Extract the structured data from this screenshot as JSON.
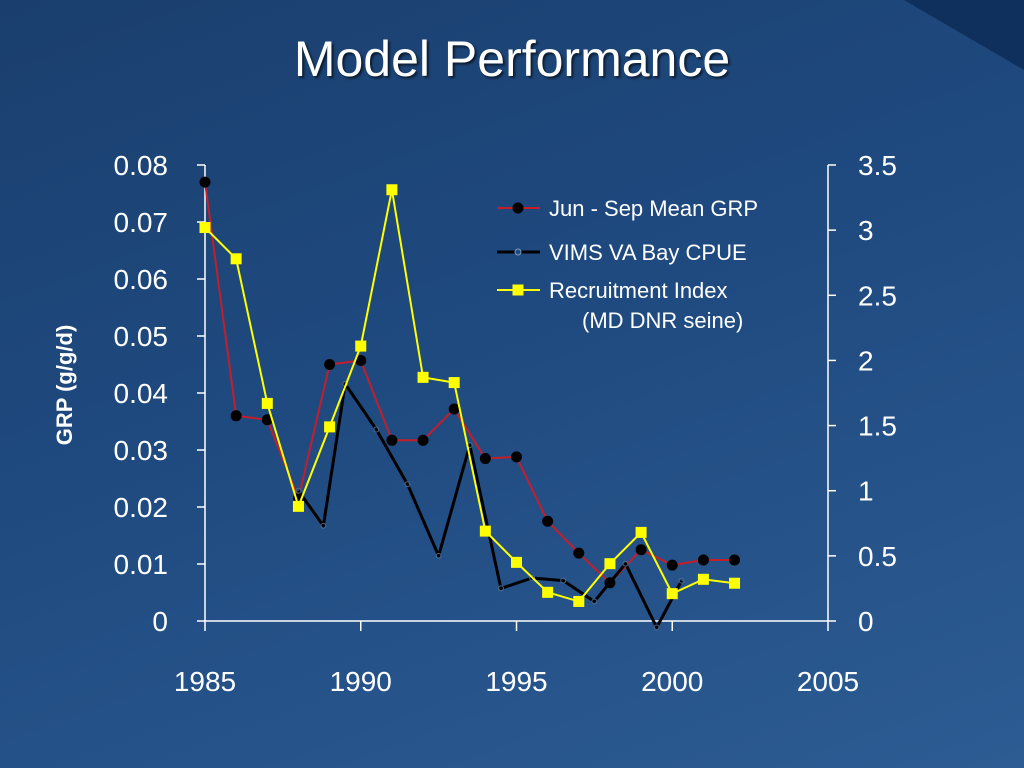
{
  "slide": {
    "title": "Model Performance"
  },
  "chart_data": {
    "type": "line",
    "title": "Model Performance",
    "xlabel": "",
    "ylabel": "GRP (g/g/d)",
    "y2label": "",
    "xlim": [
      1985,
      2005
    ],
    "ylim": [
      0,
      0.08
    ],
    "y2lim": [
      0,
      3.5
    ],
    "x_ticks": [
      "1985",
      "1990",
      "1995",
      "2000",
      "2005"
    ],
    "y_ticks": [
      "0",
      "0.01",
      "0.02",
      "0.03",
      "0.04",
      "0.05",
      "0.06",
      "0.07",
      "0.08"
    ],
    "y2_ticks": [
      "0",
      "0.5",
      "1",
      "1.5",
      "2",
      "2.5",
      "3",
      "3.5"
    ],
    "grid": false,
    "legend_position": "top-right",
    "series": [
      {
        "name": "Jun - Sep Mean GRP",
        "axis": "left",
        "color": "#c41e2a",
        "marker": "circle-filled",
        "marker_color": "#000000",
        "x": [
          1985,
          1986,
          1987,
          1988,
          1989,
          1990,
          1991,
          1992,
          1993,
          1994,
          1995,
          1996,
          1997,
          1998,
          1999,
          2000,
          2001,
          2002
        ],
        "values": [
          0.077,
          0.036,
          0.0353,
          0.0215,
          0.045,
          0.0457,
          0.0317,
          0.0317,
          0.0372,
          0.0285,
          0.0288,
          0.0175,
          0.0119,
          0.0067,
          0.0125,
          0.0098,
          0.0107,
          0.0107
        ]
      },
      {
        "name": "VIMS VA Bay CPUE",
        "axis": "right",
        "color": "#000000",
        "marker": "circle-open",
        "x": [
          1988,
          1988.8,
          1989.5,
          1990.5,
          1991.5,
          1992.5,
          1993.5,
          1994.5,
          1995.5,
          1996.5,
          1997.5,
          1998.5,
          1999.5,
          2000.3
        ],
        "values": [
          1.0,
          0.73,
          1.82,
          1.47,
          1.05,
          0.5,
          1.35,
          0.25,
          0.33,
          0.31,
          0.15,
          0.44,
          -0.05,
          0.31
        ]
      },
      {
        "name": "Recruitment Index",
        "name_line2": "(MD DNR seine)",
        "axis": "right",
        "color": "#ffff00",
        "marker": "square",
        "x": [
          1985,
          1986,
          1987,
          1988,
          1989,
          1990,
          1991,
          1992,
          1993,
          1994,
          1995,
          1996,
          1997,
          1998,
          1999,
          2000,
          2001,
          2002
        ],
        "values": [
          3.02,
          2.78,
          1.67,
          0.88,
          1.49,
          2.11,
          3.31,
          1.87,
          1.83,
          0.69,
          0.45,
          0.22,
          0.15,
          0.44,
          0.68,
          0.21,
          0.32,
          0.29
        ]
      }
    ]
  }
}
